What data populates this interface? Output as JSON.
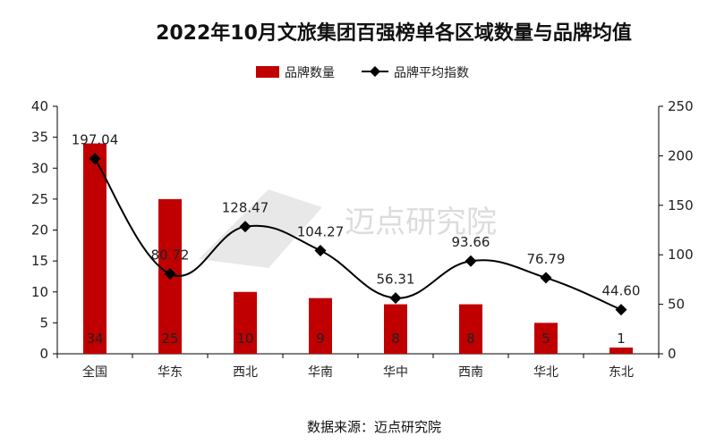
{
  "chart_data": {
    "type": "bar",
    "title": "2022年10月文旅集团百强榜单各区域数量与品牌均值",
    "categories": [
      "全国",
      "华东",
      "西北",
      "华南",
      "华中",
      "西南",
      "华北",
      "东北"
    ],
    "series": [
      {
        "name": "品牌数量",
        "type": "bar",
        "axis": "left",
        "values": [
          34,
          25,
          10,
          9,
          8,
          8,
          5,
          1
        ],
        "labels": [
          "34",
          "25",
          "10",
          "9",
          "8",
          "8",
          "5",
          "1"
        ],
        "color": "#c00000"
      },
      {
        "name": "品牌平均指数",
        "type": "line",
        "axis": "right",
        "values": [
          197.04,
          80.72,
          128.47,
          104.27,
          56.31,
          93.66,
          76.79,
          44.6
        ],
        "labels": [
          "197.04",
          "80.72",
          "128.47",
          "104.27",
          "56.31",
          "93.66",
          "76.79",
          "44.60"
        ],
        "color": "#000000"
      }
    ],
    "y_left": {
      "min": 0,
      "max": 40,
      "ticks": [
        "0",
        "5",
        "10",
        "15",
        "20",
        "25",
        "30",
        "35",
        "40"
      ]
    },
    "y_right": {
      "min": 0,
      "max": 250,
      "ticks": [
        "0",
        "50",
        "100",
        "150",
        "200",
        "250"
      ]
    },
    "legend_position": "top-center",
    "grid": false
  },
  "watermark": "迈点研究院",
  "source": "数据来源：迈点研究院"
}
